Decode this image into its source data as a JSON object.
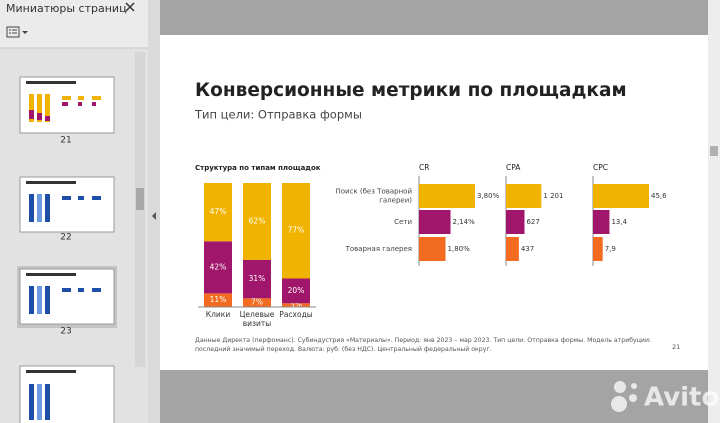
{
  "sidebar": {
    "title": "Миниатюры страниц",
    "pages": [
      "21",
      "22",
      "23"
    ]
  },
  "slide": {
    "title": "Конверсионные метрики по площадкам",
    "subtitle": "Тип цели: Отправка формы",
    "footnote": "Данные Директа (перфоманс). Субиндустрия «Материалы». Период: янв 2023 – мар 2023. Тип цели: Отправка формы. Модель атрибуции: последний значимый переход. Валюта: руб. (без НДС). Центральный федеральный округ.",
    "page_number": "21"
  },
  "watermark": "Avito",
  "chart_data": [
    {
      "type": "stacked-bar",
      "title": "Структура по типам площадок",
      "categories": [
        "Клики",
        "Целевые визиты",
        "Расходы"
      ],
      "ylim": [
        0,
        100
      ],
      "series": [
        {
          "color": "#f26b21",
          "values": [
            11,
            7,
            3
          ],
          "value_labels": [
            "11%",
            "7%",
            "3%"
          ]
        },
        {
          "color": "#a0166a",
          "values": [
            42,
            31,
            20
          ],
          "value_labels": [
            "42%",
            "31%",
            "20%"
          ]
        },
        {
          "color": "#f0b400",
          "values": [
            47,
            62,
            77
          ],
          "value_labels": [
            "47%",
            "62%",
            "77%"
          ]
        }
      ]
    },
    {
      "type": "hbar-panels",
      "categories": [
        "Поиск (без Товарной галереи)",
        "Сети",
        "Товарная галерея"
      ],
      "colors": [
        "#f0b400",
        "#a0166a",
        "#f26b21"
      ],
      "panels": [
        {
          "title": "CR",
          "values": [
            3.8,
            2.14,
            1.8
          ],
          "value_labels": [
            "3,80%",
            "2,14%",
            "1,80%"
          ],
          "xlim": [
            0,
            3.8
          ]
        },
        {
          "title": "CPA",
          "values": [
            1201,
            627,
            437
          ],
          "value_labels": [
            "1 201",
            "627",
            "437"
          ],
          "xlim": [
            0,
            1900
          ]
        },
        {
          "title": "CPC",
          "values": [
            45.6,
            13.4,
            7.9
          ],
          "value_labels": [
            "45,6",
            "13,4",
            "7,9"
          ],
          "xlim": [
            0,
            45.6
          ]
        }
      ]
    }
  ]
}
